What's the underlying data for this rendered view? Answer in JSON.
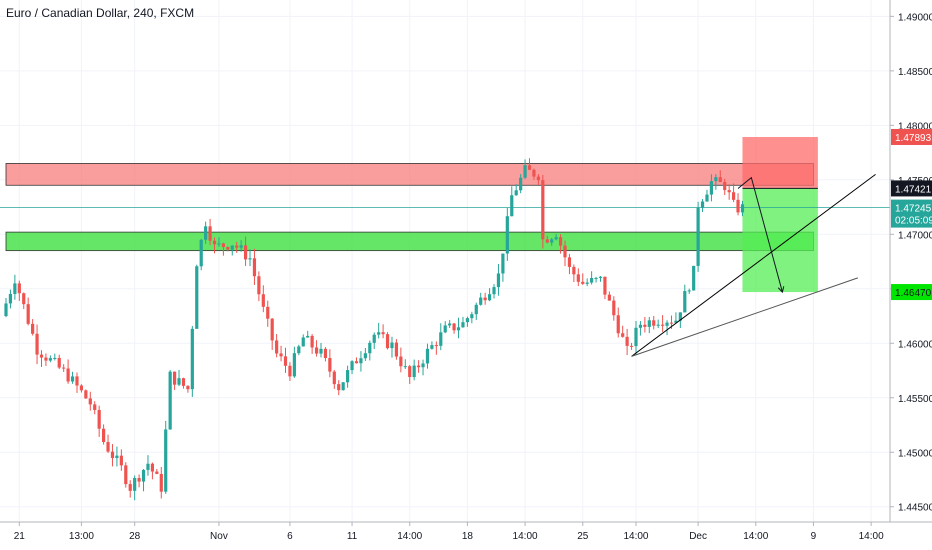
{
  "chart_data": {
    "type": "candlestick",
    "title": "Euro / Canadian Dollar, 240, FXCM",
    "y_axis": {
      "ticks": [
        "1.49000",
        "1.48500",
        "1.48000",
        "1.47500",
        "1.47000",
        "1.46500",
        "1.46000",
        "1.45500",
        "1.45000",
        "1.44500"
      ],
      "tick_values": [
        1.49,
        1.485,
        1.48,
        1.475,
        1.47,
        1.465,
        1.46,
        1.455,
        1.45,
        1.445
      ],
      "range": [
        1.4436,
        1.4915
      ]
    },
    "x_axis": {
      "ticks": [
        "21",
        "13:00",
        "28",
        "Nov",
        "6",
        "11",
        "14:00",
        "18",
        "14:00",
        "25",
        "14:00",
        "Dec",
        "14:00",
        "9",
        "14:00"
      ],
      "tick_bars": [
        3,
        17,
        29,
        48,
        64,
        78,
        91,
        104,
        117,
        130,
        142,
        156,
        169,
        182,
        195
      ]
    },
    "price_labels": [
      {
        "text": "1.47893",
        "value": 1.47893,
        "bg": "#ef5350",
        "fg": "#ffffff"
      },
      {
        "text": "1.47421",
        "value": 1.47421,
        "bg": "#131722",
        "fg": "#ffffff"
      },
      {
        "text": "1.47245",
        "value": 1.47245,
        "bg": "#26a69a",
        "fg": "#ffffff"
      },
      {
        "text": "02:05:09",
        "value": 1.47135,
        "bg": "#26a69a",
        "fg": "#ffffff"
      },
      {
        "text": "1.46470",
        "value": 1.4647,
        "bg": "#00e600",
        "fg": "#131722"
      }
    ],
    "zones": [
      {
        "name": "resistance",
        "from": 1.4745,
        "to": 1.4765,
        "x_start_bar": 0,
        "x_end_bar": 182,
        "color": "#f87c7c"
      },
      {
        "name": "support",
        "from": 1.4685,
        "to": 1.4702,
        "x_start_bar": 0,
        "x_end_bar": 182,
        "color": "#33dd33"
      }
    ],
    "position": {
      "type": "short",
      "start_bar": 166,
      "end_bar": 183,
      "entry": 1.47421,
      "stop": 1.47893,
      "target": 1.4647
    },
    "trendlines": [
      {
        "x1_bar": 141,
        "y1": 1.4588,
        "x2_bar": 196,
        "y2": 1.4755,
        "color": "#000000"
      },
      {
        "x1_bar": 141,
        "y1": 1.4588,
        "x2_bar": 192,
        "y2": 1.466,
        "color": "#555555"
      }
    ],
    "hline": {
      "value": 1.47245,
      "color": "#26a69a"
    },
    "arrow_path": [
      {
        "bar": 165,
        "value": 1.4742
      },
      {
        "bar": 168,
        "value": 1.4752
      },
      {
        "bar": 172,
        "value": 1.4692
      },
      {
        "bar": 175,
        "value": 1.4647
      }
    ],
    "key_path": [
      [
        0,
        1.4625
      ],
      [
        3,
        1.466
      ],
      [
        8,
        1.4595
      ],
      [
        15,
        1.457
      ],
      [
        20,
        1.4545
      ],
      [
        23,
        1.451
      ],
      [
        27,
        1.4485
      ],
      [
        29,
        1.4468
      ],
      [
        33,
        1.449
      ],
      [
        36,
        1.4468
      ],
      [
        38,
        1.457
      ],
      [
        42,
        1.4558
      ],
      [
        44,
        1.4675
      ],
      [
        46,
        1.4712
      ],
      [
        48,
        1.4688
      ],
      [
        52,
        1.4692
      ],
      [
        56,
        1.4678
      ],
      [
        59,
        1.463
      ],
      [
        62,
        1.459
      ],
      [
        65,
        1.4575
      ],
      [
        68,
        1.4605
      ],
      [
        72,
        1.459
      ],
      [
        76,
        1.456
      ],
      [
        80,
        1.4585
      ],
      [
        84,
        1.4608
      ],
      [
        88,
        1.4598
      ],
      [
        92,
        1.4568
      ],
      [
        96,
        1.4592
      ],
      [
        100,
        1.4612
      ],
      [
        104,
        1.4618
      ],
      [
        108,
        1.464
      ],
      [
        112,
        1.4662
      ],
      [
        115,
        1.4735
      ],
      [
        118,
        1.4758
      ],
      [
        121,
        1.4755
      ],
      [
        122,
        1.4695
      ],
      [
        125,
        1.4702
      ],
      [
        128,
        1.4668
      ],
      [
        131,
        1.4655
      ],
      [
        135,
        1.4658
      ],
      [
        139,
        1.4615
      ],
      [
        141,
        1.4592
      ],
      [
        144,
        1.4618
      ],
      [
        148,
        1.4622
      ],
      [
        152,
        1.4622
      ],
      [
        156,
        1.4665
      ],
      [
        157,
        1.4728
      ],
      [
        160,
        1.4748
      ],
      [
        163,
        1.4745
      ],
      [
        165,
        1.4726
      ],
      [
        166,
        1.4724
      ]
    ],
    "bar_count": 167,
    "up_color": "#26a69a",
    "down_color": "#ef5350",
    "grid": true
  }
}
